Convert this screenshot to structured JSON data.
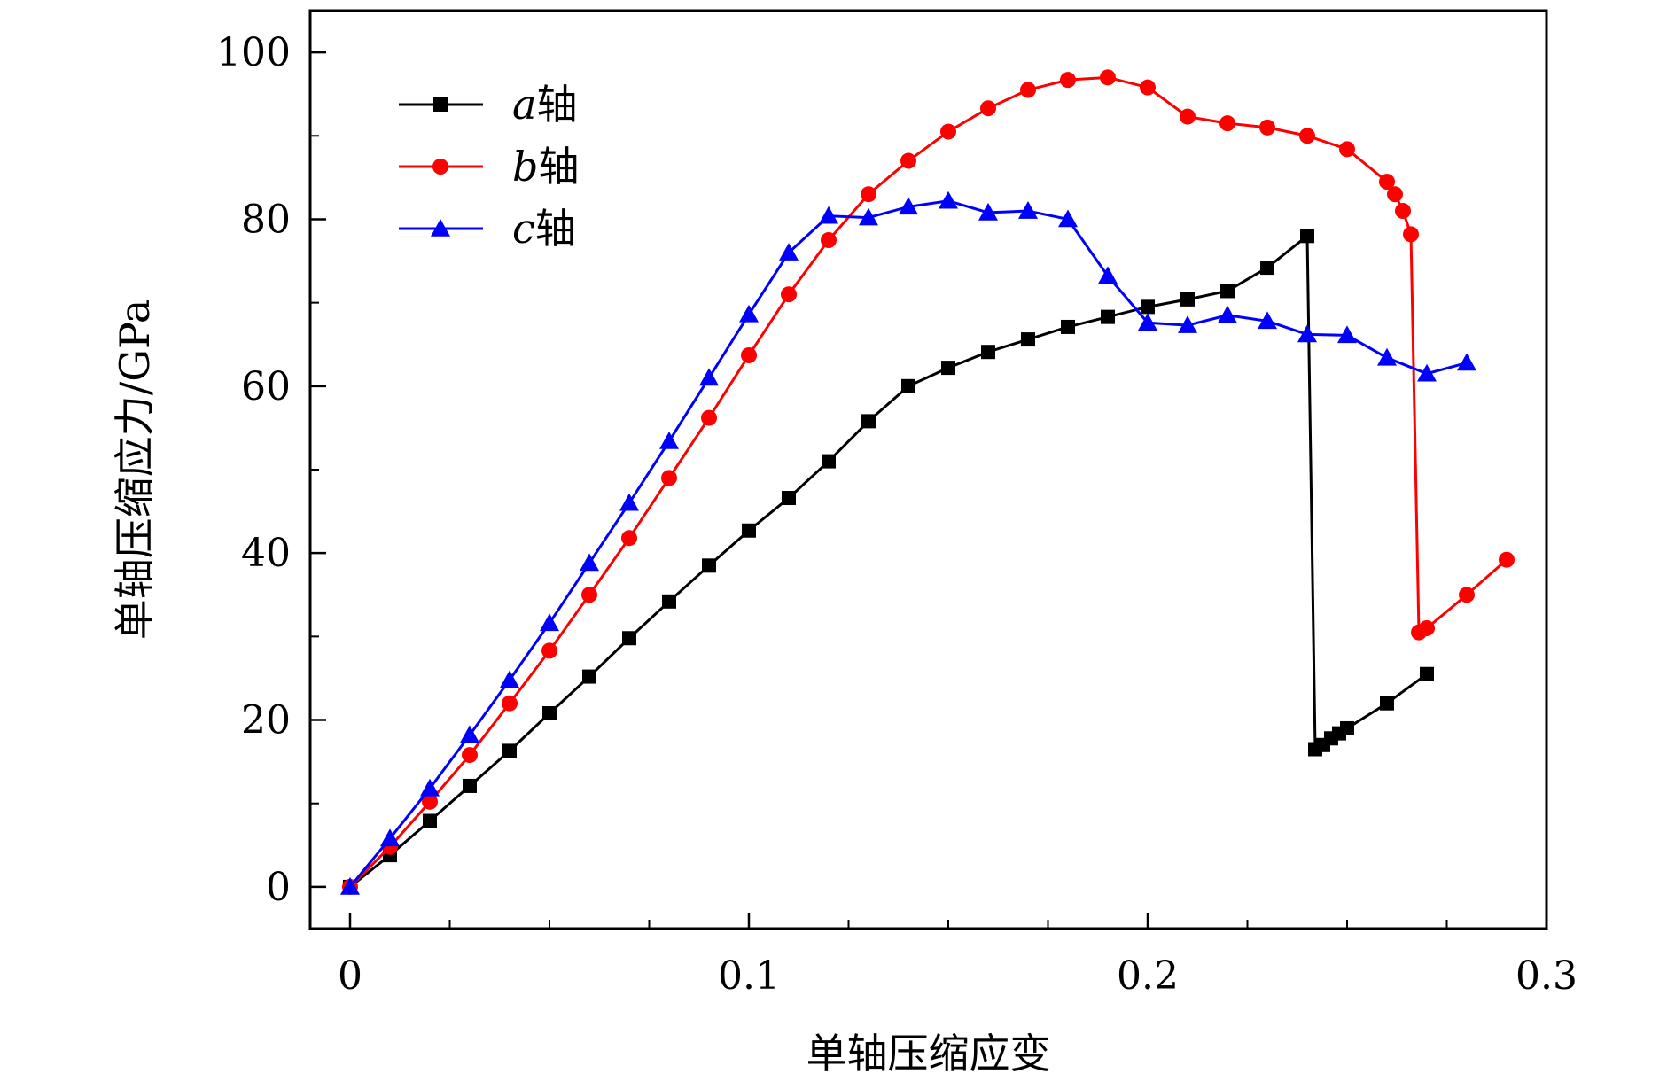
{
  "chart_data": {
    "type": "line",
    "title": "",
    "xlabel": "单轴压缩应变",
    "ylabel": "单轴压缩应力/GPa",
    "xlim": [
      -0.01,
      0.3
    ],
    "ylim": [
      -5,
      105
    ],
    "x_ticks": [
      0,
      0.1,
      0.2,
      0.3
    ],
    "x_tick_labels": [
      "0",
      "0.1",
      "0.2",
      "0.3"
    ],
    "y_ticks": [
      0,
      20,
      40,
      60,
      80,
      100
    ],
    "y_tick_labels": [
      "0",
      "20",
      "40",
      "60",
      "80",
      "100"
    ],
    "grid": false,
    "legend_position": "top-left",
    "series": [
      {
        "name": "a轴",
        "name_var": "a",
        "name_suffix": "轴",
        "color": "#000000",
        "marker": "square",
        "x": [
          0,
          0.01,
          0.02,
          0.03,
          0.04,
          0.05,
          0.06,
          0.07,
          0.08,
          0.09,
          0.1,
          0.11,
          0.12,
          0.13,
          0.14,
          0.15,
          0.16,
          0.17,
          0.18,
          0.19,
          0.2,
          0.21,
          0.22,
          0.23,
          0.24,
          0.242,
          0.244,
          0.246,
          0.248,
          0.25,
          0.26,
          0.27
        ],
        "y": [
          0,
          3.8,
          7.9,
          12.1,
          16.3,
          20.8,
          25.2,
          29.8,
          34.2,
          38.5,
          42.7,
          46.6,
          51.0,
          55.8,
          60.0,
          62.2,
          64.1,
          65.6,
          67.1,
          68.3,
          69.5,
          70.4,
          71.4,
          74.2,
          78.0,
          16.5,
          17.0,
          17.8,
          18.4,
          19.0,
          22.0,
          25.5
        ]
      },
      {
        "name": "b轴",
        "name_var": "b",
        "name_suffix": "轴",
        "color": "#ff0000",
        "marker": "circle",
        "x": [
          0,
          0.01,
          0.02,
          0.03,
          0.04,
          0.05,
          0.06,
          0.07,
          0.08,
          0.09,
          0.1,
          0.11,
          0.12,
          0.13,
          0.14,
          0.15,
          0.16,
          0.17,
          0.18,
          0.19,
          0.2,
          0.21,
          0.22,
          0.23,
          0.24,
          0.25,
          0.26,
          0.262,
          0.264,
          0.266,
          0.268,
          0.27,
          0.28,
          0.29
        ],
        "y": [
          0,
          4.8,
          10.2,
          15.8,
          22.0,
          28.3,
          35.0,
          41.8,
          49.0,
          56.2,
          63.7,
          71.0,
          77.5,
          83.0,
          87.0,
          90.5,
          93.3,
          95.5,
          96.7,
          97.0,
          95.8,
          92.3,
          91.5,
          91.0,
          90.0,
          88.4,
          84.5,
          83.0,
          81.0,
          78.2,
          30.5,
          31.0,
          35.0,
          39.2
        ]
      },
      {
        "name": "c轴",
        "name_var": "c",
        "name_suffix": "轴",
        "color": "#0000ff",
        "marker": "triangle",
        "x": [
          0,
          0.01,
          0.02,
          0.03,
          0.04,
          0.05,
          0.06,
          0.07,
          0.08,
          0.09,
          0.1,
          0.11,
          0.12,
          0.13,
          0.14,
          0.15,
          0.16,
          0.17,
          0.18,
          0.19,
          0.2,
          0.21,
          0.22,
          0.23,
          0.24,
          0.25,
          0.26,
          0.27,
          0.28
        ],
        "y": [
          0,
          5.8,
          11.8,
          18.2,
          24.8,
          31.6,
          38.8,
          46.0,
          53.4,
          61.0,
          68.6,
          76.0,
          80.4,
          80.2,
          81.5,
          82.2,
          80.8,
          81.0,
          80.0,
          73.2,
          67.6,
          67.3,
          68.5,
          67.8,
          66.2,
          66.1,
          63.4,
          61.5,
          62.8
        ]
      }
    ]
  }
}
